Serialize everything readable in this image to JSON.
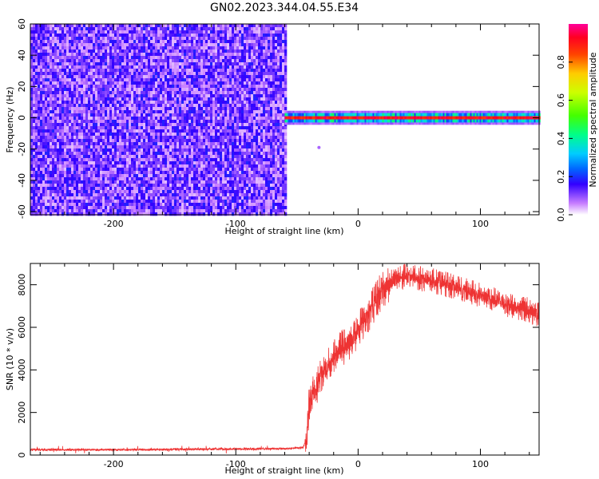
{
  "figure": {
    "title": "GN02.2023.344.04.55.E34"
  },
  "colors": {
    "snr_line": "#ee3333",
    "axis": "#000000",
    "background": "#ffffff"
  },
  "chart_data": [
    {
      "type": "heatmap",
      "title": "",
      "xlabel": "Height of straight line (km)",
      "ylabel": "Frequency (Hz)",
      "xlim": [
        -268,
        148
      ],
      "ylim": [
        -62,
        60
      ],
      "x_ticks": [
        -200,
        -100,
        0,
        100
      ],
      "y_ticks": [
        60,
        40,
        20,
        0,
        -20,
        -40,
        -60
      ],
      "noise_region_x": [
        -268,
        -60
      ],
      "signal_band": {
        "x": [
          -60,
          148
        ],
        "center_hz": 0,
        "halfwidth_hz": 3,
        "note_value": 1.0
      },
      "colorbar": {
        "label": "Normalized spectral amplitude",
        "range": [
          0,
          1
        ],
        "ticks": [
          0.0,
          0.2,
          0.4,
          0.6,
          0.8
        ]
      }
    },
    {
      "type": "line",
      "title": "",
      "xlabel": "Height of straight line (km)",
      "ylabel": "SNR (10 * v/v)",
      "xlim": [
        -268,
        148
      ],
      "ylim": [
        0,
        9000
      ],
      "x_ticks": [
        -200,
        -100,
        0,
        100
      ],
      "y_ticks": [
        0,
        2000,
        4000,
        6000,
        8000
      ],
      "series": [
        {
          "x": [
            -268,
            -200,
            -120,
            -60,
            -45,
            -42,
            -40,
            -35,
            -30,
            -20,
            -10,
            0,
            10,
            20,
            30,
            40,
            50,
            60,
            80,
            100,
            120,
            140,
            148
          ],
          "values": [
            250,
            250,
            280,
            300,
            350,
            800,
            2500,
            3000,
            3800,
            4600,
            5200,
            5800,
            6800,
            7800,
            8300,
            8400,
            8300,
            8200,
            7900,
            7500,
            7100,
            6800,
            6600
          ]
        }
      ]
    }
  ]
}
